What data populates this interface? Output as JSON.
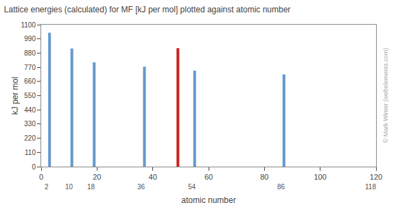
{
  "chart_data": {
    "type": "bar",
    "title": "Lattice energies (calculated) for MF [kJ per mol] plotted against atomic number",
    "xlabel": "atomic number",
    "ylabel": "kJ per mol",
    "x": [
      3,
      11,
      19,
      37,
      49,
      55,
      87
    ],
    "values": [
      1037,
      915,
      808,
      774,
      918,
      744,
      715
    ],
    "colors": [
      "#6699cc",
      "#6699cc",
      "#6699cc",
      "#6699cc",
      "#cc2222",
      "#6699cc",
      "#6699cc"
    ],
    "xlim": [
      0,
      120
    ],
    "xticks": [
      0,
      20,
      40,
      60,
      80,
      100,
      120
    ],
    "ylim": [
      0,
      1100
    ],
    "yticks": [
      0,
      110,
      220,
      330,
      440,
      550,
      660,
      770,
      880,
      990,
      1100
    ],
    "grid": false,
    "annotations": [
      {
        "x": 2,
        "text": "2"
      },
      {
        "x": 10,
        "text": "10"
      },
      {
        "x": 18,
        "text": "18"
      },
      {
        "x": 36,
        "text": "36"
      },
      {
        "x": 54,
        "text": "54"
      },
      {
        "x": 86,
        "text": "86"
      },
      {
        "x": 118,
        "text": "118"
      },
      {
        "text": "© Mark Winter (webelements.com)"
      }
    ]
  }
}
